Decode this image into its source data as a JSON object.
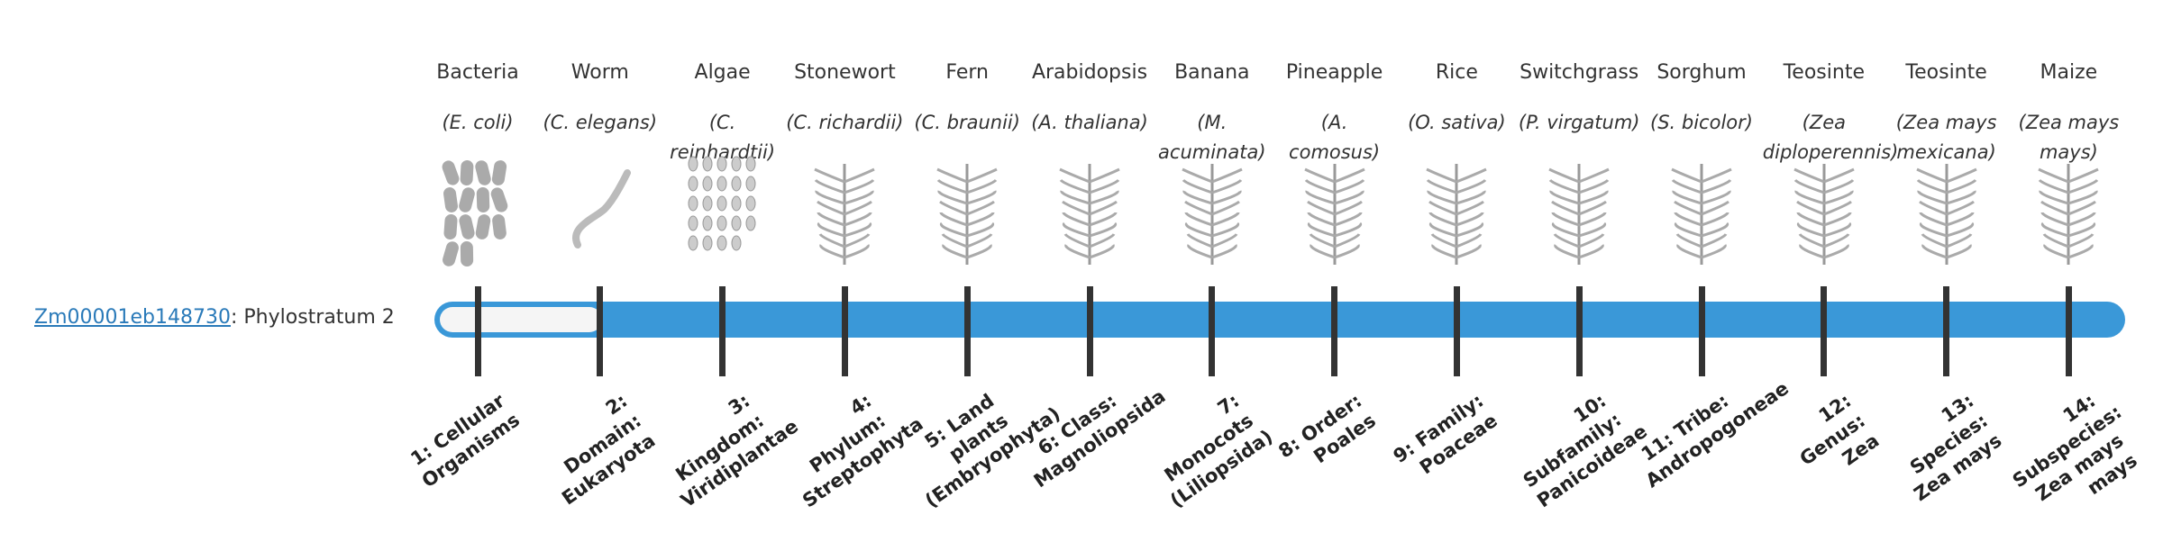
{
  "gene": {
    "id": "Zm00001eb148730",
    "label": ": Phylostratum 2"
  },
  "taxa": [
    {
      "common": "Bacteria",
      "scientific": "(E. coli)",
      "stratum": "1: Cellular Organisms"
    },
    {
      "common": "Worm",
      "scientific": "(C. elegans)",
      "stratum": "2: Domain: Eukaryota"
    },
    {
      "common": "Algae",
      "scientific": "(C. reinhardtii)",
      "stratum": "3: Kingdom: Viridiplantae"
    },
    {
      "common": "Stonewort",
      "scientific": "(C. richardii)",
      "stratum": "4: Phylum: Streptophyta"
    },
    {
      "common": "Fern",
      "scientific": "(C. braunii)",
      "stratum": "5: Land plants (Embryophyta)"
    },
    {
      "common": "Arabidopsis",
      "scientific": "(A. thaliana)",
      "stratum": "6: Class: Magnoliopsida"
    },
    {
      "common": "Banana",
      "scientific": "(M. acuminata)",
      "stratum": "7: Monocots (Liliopsida)"
    },
    {
      "common": "Pineapple",
      "scientific": "(A. comosus)",
      "stratum": "8: Order: Poales"
    },
    {
      "common": "Rice",
      "scientific": "(O. sativa)",
      "stratum": "9: Family: Poaceae"
    },
    {
      "common": "Switchgrass",
      "scientific": "(P. virgatum)",
      "stratum": "10: Subfamily: Panicoideae"
    },
    {
      "common": "Sorghum",
      "scientific": "(S. bicolor)",
      "stratum": "11: Tribe: Andropogoneae"
    },
    {
      "common": "Teosinte",
      "scientific": "(Zea diploperennis)",
      "stratum": "12: Genus: Zea"
    },
    {
      "common": "Teosinte",
      "scientific": "(Zea mays mexicana)",
      "stratum": "13: Species: Zea mays"
    },
    {
      "common": "Maize",
      "scientific": "(Zea mays mays)",
      "stratum": "14: Subspecies: Zea mays mays"
    }
  ]
}
